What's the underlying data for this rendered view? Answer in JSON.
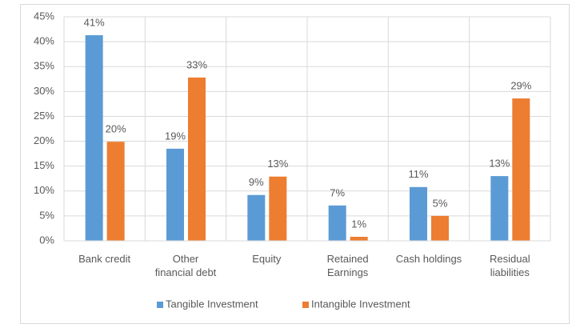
{
  "chart_data": {
    "type": "bar",
    "categories": [
      "Bank credit",
      "Other\nfinancial debt",
      "Equity",
      "Retained\nEarnings",
      "Cash holdings",
      "Residual\nliabilities"
    ],
    "series": [
      {
        "name": "Tangible Investment",
        "color": "#5b9bd5",
        "values": [
          41.3,
          18.5,
          9.2,
          7.1,
          10.8,
          13.0
        ],
        "value_labels": [
          "41%",
          "19%",
          "9%",
          "7%",
          "11%",
          "13%"
        ]
      },
      {
        "name": "Intangible Investment",
        "color": "#ed7d31",
        "values": [
          19.9,
          32.8,
          12.9,
          0.8,
          5.0,
          28.6
        ],
        "value_labels": [
          "20%",
          "33%",
          "13%",
          "1%",
          "5%",
          "29%"
        ]
      }
    ],
    "ylim": [
      0,
      45
    ],
    "yticks": [
      {
        "value": 0,
        "label": "0%"
      },
      {
        "value": 5,
        "label": "5%"
      },
      {
        "value": 10,
        "label": "10%"
      },
      {
        "value": 15,
        "label": "15%"
      },
      {
        "value": 20,
        "label": "20%"
      },
      {
        "value": 25,
        "label": "25%"
      },
      {
        "value": 30,
        "label": "30%"
      },
      {
        "value": 35,
        "label": "35%"
      },
      {
        "value": 40,
        "label": "40%"
      },
      {
        "value": 45,
        "label": "45%"
      }
    ],
    "grid": true,
    "legend": "bottom"
  }
}
